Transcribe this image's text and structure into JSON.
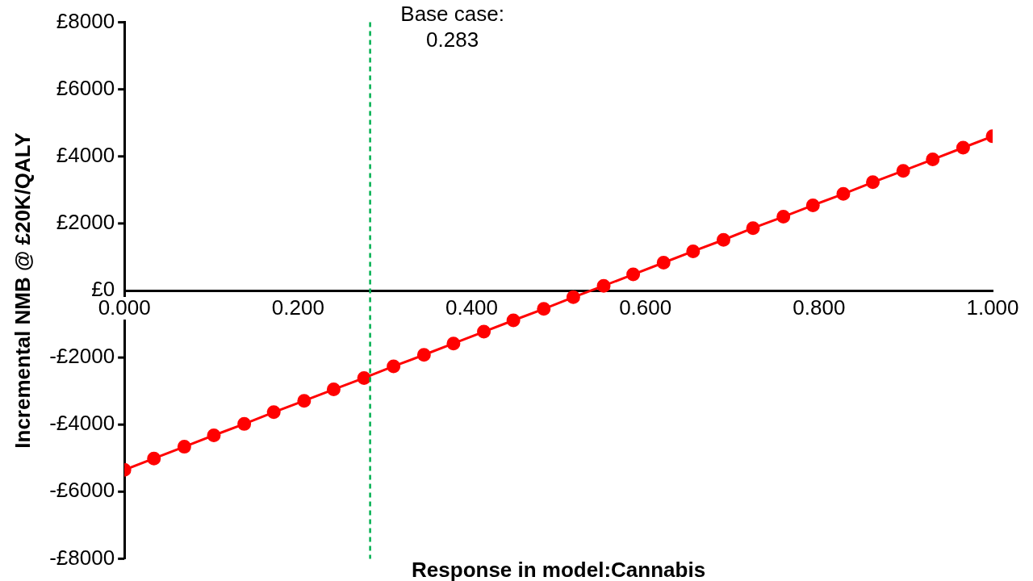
{
  "chart_data": {
    "type": "line",
    "xlabel": "Response in model:Cannabis",
    "ylabel": "Incremental NMB @ £20K/QALY",
    "x": [
      0,
      0.034,
      0.069,
      0.103,
      0.138,
      0.172,
      0.207,
      0.241,
      0.276,
      0.31,
      0.345,
      0.379,
      0.414,
      0.448,
      0.483,
      0.517,
      0.552,
      0.586,
      0.621,
      0.655,
      0.69,
      0.724,
      0.759,
      0.793,
      0.828,
      0.862,
      0.897,
      0.931,
      0.966,
      1
    ],
    "series": [
      {
        "color": "#ff0000",
        "values": [
          -5350,
          -5010,
          -4660,
          -4320,
          -3980,
          -3630,
          -3290,
          -2950,
          -2610,
          -2260,
          -1920,
          -1580,
          -1230,
          -890,
          -550,
          -200,
          140,
          480,
          830,
          1170,
          1510,
          1860,
          2200,
          2540,
          2880,
          3230,
          3570,
          3910,
          4260,
          4600
        ]
      }
    ],
    "xlim": [
      0,
      1
    ],
    "xticks": [
      {
        "value": 0,
        "label": "0.000"
      },
      {
        "value": 0.2,
        "label": "0.200"
      },
      {
        "value": 0.4,
        "label": "0.400"
      },
      {
        "value": 0.6,
        "label": "0.600"
      },
      {
        "value": 0.8,
        "label": "0.800"
      },
      {
        "value": 1,
        "label": "1.000"
      }
    ],
    "ylim": [
      -8000,
      8000
    ],
    "yticks": [
      {
        "value": -8000,
        "label": "-£8000"
      },
      {
        "value": -6000,
        "label": "-£6000"
      },
      {
        "value": -4000,
        "label": "-£4000"
      },
      {
        "value": -2000,
        "label": "-£2000"
      },
      {
        "value": 0,
        "label": "£0"
      },
      {
        "value": 2000,
        "label": "£2000"
      },
      {
        "value": 4000,
        "label": "£4000"
      },
      {
        "value": 6000,
        "label": "£6000"
      },
      {
        "value": 8000,
        "label": "£8000"
      }
    ],
    "ref_lines": [
      {
        "axis": "x",
        "value": 0.283,
        "label": "Base case:\n0.283",
        "color": "#00b050",
        "line_style": "dashed"
      }
    ],
    "marker": "circle",
    "line_style": "solid",
    "legend": false,
    "grid": false
  }
}
